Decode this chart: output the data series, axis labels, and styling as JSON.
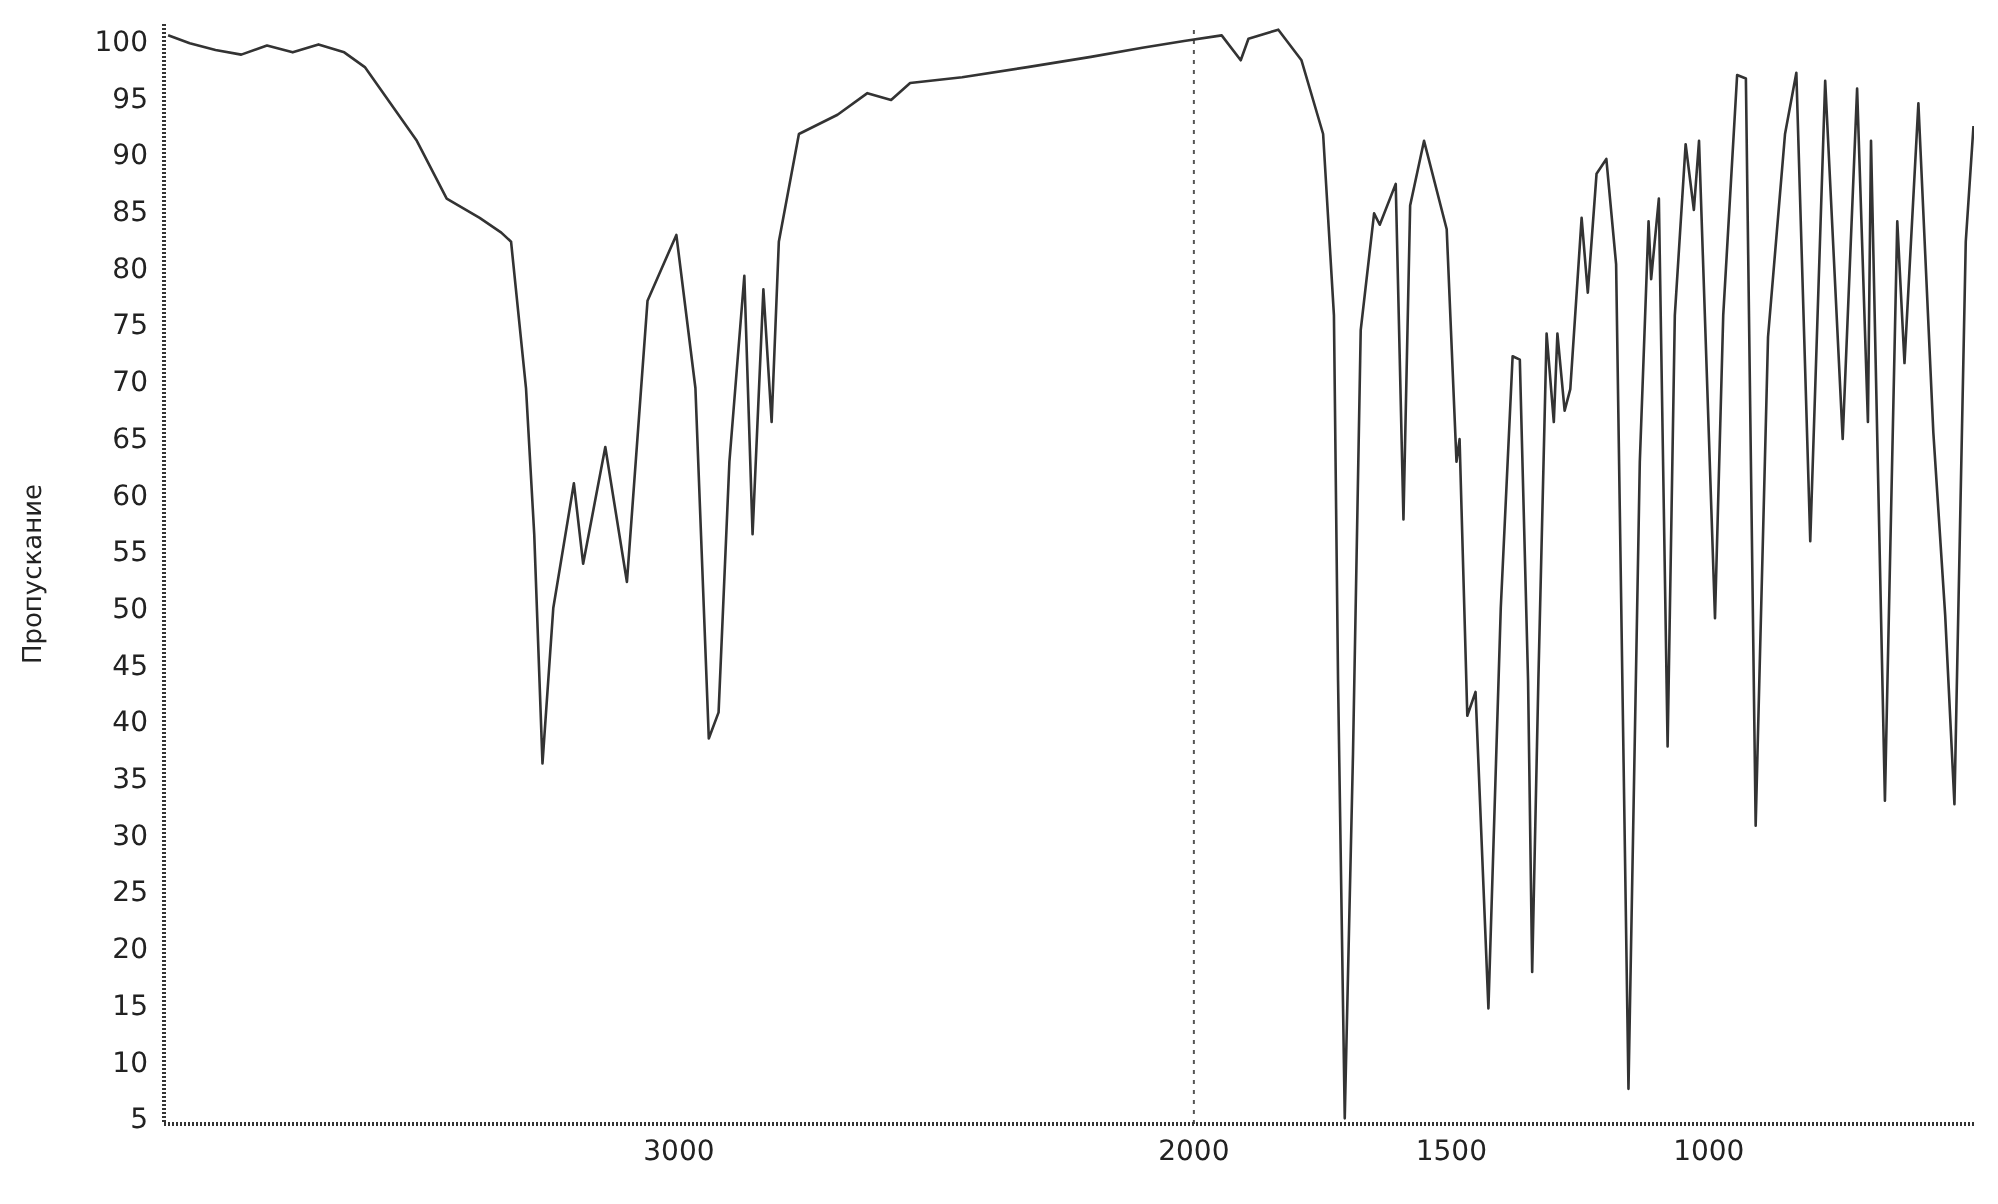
{
  "chart_data": {
    "type": "line",
    "ylabel": "Пропускание",
    "x": [
      3992,
      3950,
      3900,
      3850,
      3800,
      3750,
      3700,
      3650,
      3610,
      3509,
      3451,
      3387,
      3345,
      3326,
      3297,
      3281,
      3265,
      3244,
      3204,
      3186,
      3143,
      3101,
      3061,
      3005,
      2968,
      2942,
      2923,
      2902,
      2873,
      2857,
      2836,
      2820,
      2806,
      2767,
      2692,
      2634,
      2588,
      2551,
      2450,
      2323,
      2200,
      2100,
      2019,
      1946,
      1909,
      1894,
      1836,
      1791,
      1749,
      1728,
      1720,
      1707,
      1691,
      1676,
      1650,
      1639,
      1608,
      1593,
      1580,
      1553,
      1509,
      1490,
      1484,
      1469,
      1453,
      1428,
      1404,
      1381,
      1367,
      1351,
      1343,
      1331,
      1315,
      1301,
      1294,
      1280,
      1269,
      1247,
      1235,
      1218,
      1199,
      1180,
      1156,
      1134,
      1117,
      1112,
      1097,
      1080,
      1066,
      1045,
      1029,
      1019,
      988,
      972,
      945,
      928,
      909,
      885,
      852,
      830,
      803,
      774,
      740,
      712,
      691,
      685,
      658,
      634,
      620,
      593,
      564,
      541,
      523,
      501,
      486
    ],
    "series": [
      {
        "color": "#333333",
        "values": [
          100.5,
          99.8,
          99.2,
          98.8,
          99.6,
          99.0,
          99.7,
          99.0,
          97.7,
          91.2,
          86.1,
          84.4,
          83.1,
          82.3,
          69.4,
          56.5,
          36.3,
          50,
          61,
          53.9,
          64.2,
          52.3,
          77.1,
          82.9,
          69.4,
          38.5,
          40.8,
          62.9,
          79.3,
          56.5,
          78.1,
          66.4,
          82.3,
          91.8,
          93.5,
          95.4,
          94.8,
          96.3,
          96.8,
          97.7,
          98.6,
          99.4,
          100,
          100.5,
          98.3,
          100.2,
          101,
          98.3,
          91.8,
          75.8,
          43.6,
          5,
          37.1,
          74.5,
          84.8,
          83.8,
          87.4,
          57.8,
          85.5,
          91.2,
          83.4,
          62.9,
          64.9,
          40.5,
          42.6,
          14.7,
          50,
          72.2,
          71.9,
          43.6,
          17.9,
          43.6,
          74.2,
          66.4,
          74.2,
          67.4,
          69.3,
          84.4,
          77.8,
          88.3,
          89.6,
          80.3,
          7.6,
          62.9,
          84.1,
          79,
          86.1,
          37.8,
          75.8,
          90.9,
          85.1,
          91.2,
          49.1,
          75.8,
          97,
          96.7,
          30.8,
          73.9,
          91.8,
          97.2,
          55.9,
          96.5,
          64.9,
          95.8,
          66.4,
          91.2,
          33,
          84.1,
          71.6,
          94.5,
          65.5,
          49.4,
          32.7,
          82.3,
          92.5
        ]
      }
    ],
    "xlim": [
      4000,
      485
    ],
    "xticks": [
      3000,
      2000,
      1500,
      1000
    ],
    "ylim": [
      4.5,
      101.5
    ],
    "yticks": [
      5,
      10,
      15,
      20,
      25,
      30,
      35,
      40,
      45,
      50,
      55,
      60,
      65,
      70,
      75,
      80,
      85,
      90,
      95,
      100
    ],
    "ref_lines": [
      {
        "axis": "x",
        "value": 2000,
        "line_style": "dotted",
        "color": "#555555"
      }
    ],
    "grid": false,
    "marker": "none",
    "line_style": "solid",
    "legend": false
  }
}
